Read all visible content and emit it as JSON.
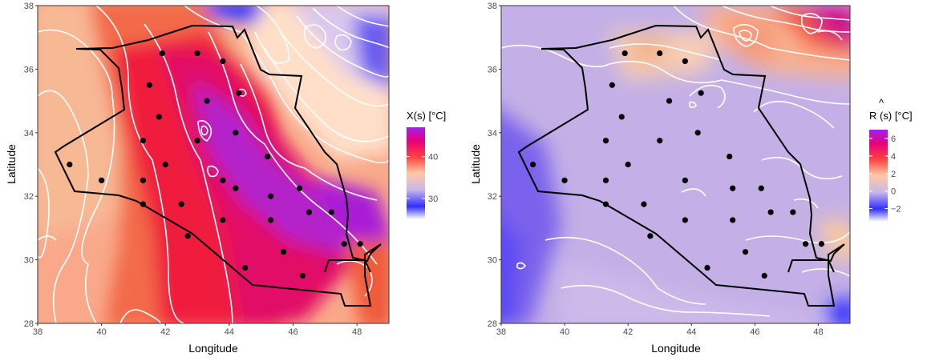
{
  "chart_data": [
    {
      "type": "heatmap",
      "panel": "left",
      "xlabel": "Longitude",
      "ylabel": "Latitude",
      "xlim": [
        38,
        49
      ],
      "ylim": [
        28,
        38
      ],
      "x_ticks": [
        38,
        40,
        42,
        44,
        46,
        48
      ],
      "y_ticks": [
        28,
        30,
        32,
        34,
        36,
        38
      ],
      "legend": {
        "title_main": "X(s)",
        "title_unit": "[°C]",
        "ticks": [
          30,
          40
        ],
        "range": [
          25,
          47
        ],
        "colors": [
          "#ffffff",
          "#2f2fff",
          "#c9b7e8",
          "#ffc9a6",
          "#ff4040",
          "#e8007a",
          "#a020f0"
        ]
      },
      "stations": [
        {
          "lon": 41.9,
          "lat": 36.5
        },
        {
          "lon": 43.0,
          "lat": 36.5
        },
        {
          "lon": 43.8,
          "lat": 36.25
        },
        {
          "lon": 41.5,
          "lat": 35.5
        },
        {
          "lon": 43.3,
          "lat": 35.0
        },
        {
          "lon": 44.3,
          "lat": 35.25
        },
        {
          "lon": 41.8,
          "lat": 34.5
        },
        {
          "lon": 44.2,
          "lat": 34.0
        },
        {
          "lon": 41.3,
          "lat": 33.75
        },
        {
          "lon": 43.0,
          "lat": 33.75
        },
        {
          "lon": 45.2,
          "lat": 33.25
        },
        {
          "lon": 39.0,
          "lat": 33.0
        },
        {
          "lon": 42.0,
          "lat": 33.0
        },
        {
          "lon": 40.0,
          "lat": 32.5
        },
        {
          "lon": 41.3,
          "lat": 32.5
        },
        {
          "lon": 43.8,
          "lat": 32.5
        },
        {
          "lon": 44.2,
          "lat": 32.25
        },
        {
          "lon": 46.2,
          "lat": 32.25
        },
        {
          "lon": 45.3,
          "lat": 32.0
        },
        {
          "lon": 41.3,
          "lat": 31.75
        },
        {
          "lon": 42.5,
          "lat": 31.75
        },
        {
          "lon": 46.5,
          "lat": 31.5
        },
        {
          "lon": 47.2,
          "lat": 31.5
        },
        {
          "lon": 43.8,
          "lat": 31.25
        },
        {
          "lon": 45.3,
          "lat": 31.25
        },
        {
          "lon": 42.7,
          "lat": 30.75
        },
        {
          "lon": 47.6,
          "lat": 30.5
        },
        {
          "lon": 48.1,
          "lat": 30.5
        },
        {
          "lon": 45.7,
          "lat": 30.25
        },
        {
          "lon": 44.5,
          "lat": 29.75
        },
        {
          "lon": 46.3,
          "lat": 29.5
        }
      ]
    },
    {
      "type": "heatmap",
      "panel": "right",
      "xlabel": "Longitude",
      "ylabel": "Latitude",
      "xlim": [
        38,
        49
      ],
      "ylim": [
        28,
        38
      ],
      "x_ticks": [
        38,
        40,
        42,
        44,
        46,
        48
      ],
      "y_ticks": [
        28,
        30,
        32,
        34,
        36,
        38
      ],
      "legend": {
        "title_main": "R",
        "title_hat": "^",
        "title_rest": "(s)",
        "title_unit": "[°C]",
        "ticks": [
          -2,
          0,
          2,
          4,
          6
        ],
        "range": [
          -3.5,
          7
        ],
        "colors": [
          "#ffffff",
          "#2f2fff",
          "#c9b7e8",
          "#ffc9a6",
          "#ff4040",
          "#e8007a",
          "#a020f0"
        ]
      },
      "stations": [
        {
          "lon": 41.9,
          "lat": 36.5
        },
        {
          "lon": 43.0,
          "lat": 36.5
        },
        {
          "lon": 43.8,
          "lat": 36.25
        },
        {
          "lon": 41.5,
          "lat": 35.5
        },
        {
          "lon": 43.3,
          "lat": 35.0
        },
        {
          "lon": 44.3,
          "lat": 35.25
        },
        {
          "lon": 41.8,
          "lat": 34.5
        },
        {
          "lon": 44.2,
          "lat": 34.0
        },
        {
          "lon": 41.3,
          "lat": 33.75
        },
        {
          "lon": 43.0,
          "lat": 33.75
        },
        {
          "lon": 45.2,
          "lat": 33.25
        },
        {
          "lon": 39.0,
          "lat": 33.0
        },
        {
          "lon": 42.0,
          "lat": 33.0
        },
        {
          "lon": 40.0,
          "lat": 32.5
        },
        {
          "lon": 41.3,
          "lat": 32.5
        },
        {
          "lon": 43.8,
          "lat": 32.5
        },
        {
          "lon": 46.2,
          "lat": 32.25
        },
        {
          "lon": 45.3,
          "lat": 32.25
        },
        {
          "lon": 41.3,
          "lat": 31.75
        },
        {
          "lon": 42.5,
          "lat": 31.75
        },
        {
          "lon": 46.5,
          "lat": 31.5
        },
        {
          "lon": 47.2,
          "lat": 31.5
        },
        {
          "lon": 43.8,
          "lat": 31.25
        },
        {
          "lon": 45.3,
          "lat": 31.25
        },
        {
          "lon": 42.7,
          "lat": 30.75
        },
        {
          "lon": 47.6,
          "lat": 30.5
        },
        {
          "lon": 48.1,
          "lat": 30.5
        },
        {
          "lon": 45.7,
          "lat": 30.25
        },
        {
          "lon": 44.5,
          "lat": 29.75
        },
        {
          "lon": 46.3,
          "lat": 29.5
        }
      ]
    }
  ]
}
